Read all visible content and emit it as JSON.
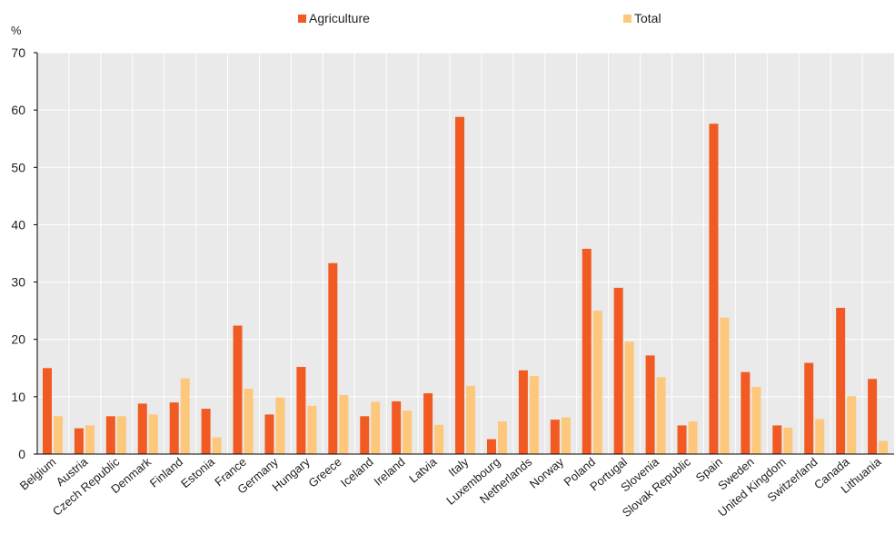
{
  "chart_data": {
    "type": "bar",
    "ylabel": "%",
    "ylim": [
      0,
      70
    ],
    "yticks": [
      0,
      10,
      20,
      30,
      40,
      50,
      60,
      70
    ],
    "grid": true,
    "legend_position": "top",
    "categories": [
      "Belgium",
      "Austria",
      "Czech Republic",
      "Denmark",
      "Finland",
      "Estonia",
      "France",
      "Germany",
      "Hungary",
      "Greece",
      "Iceland",
      "Ireland",
      "Latvia",
      "Italy",
      "Luxembourg",
      "Netherlands",
      "Norway",
      "Poland",
      "Portugal",
      "Slovenia",
      "Slovak Republic",
      "Spain",
      "Sweden",
      "United Kingdom",
      "Switzerland",
      "Canada",
      "Lithuania"
    ],
    "series": [
      {
        "name": "Agriculture",
        "color": "#F15A22",
        "values": [
          15.0,
          4.5,
          6.6,
          8.8,
          9.0,
          7.9,
          22.4,
          6.9,
          15.2,
          33.3,
          6.6,
          9.2,
          10.6,
          58.8,
          2.6,
          14.6,
          6.0,
          35.8,
          29.0,
          17.2,
          5.0,
          57.6,
          14.3,
          5.0,
          15.9,
          25.5,
          13.1
        ]
      },
      {
        "name": "Total",
        "color": "#FDC77C",
        "values": [
          6.6,
          5.0,
          6.6,
          6.9,
          13.2,
          2.9,
          11.4,
          9.9,
          8.4,
          10.3,
          9.1,
          7.6,
          5.1,
          11.9,
          5.7,
          13.6,
          6.4,
          25.0,
          19.6,
          13.4,
          5.7,
          23.8,
          11.7,
          4.6,
          6.1,
          10.1,
          2.3
        ]
      }
    ]
  }
}
